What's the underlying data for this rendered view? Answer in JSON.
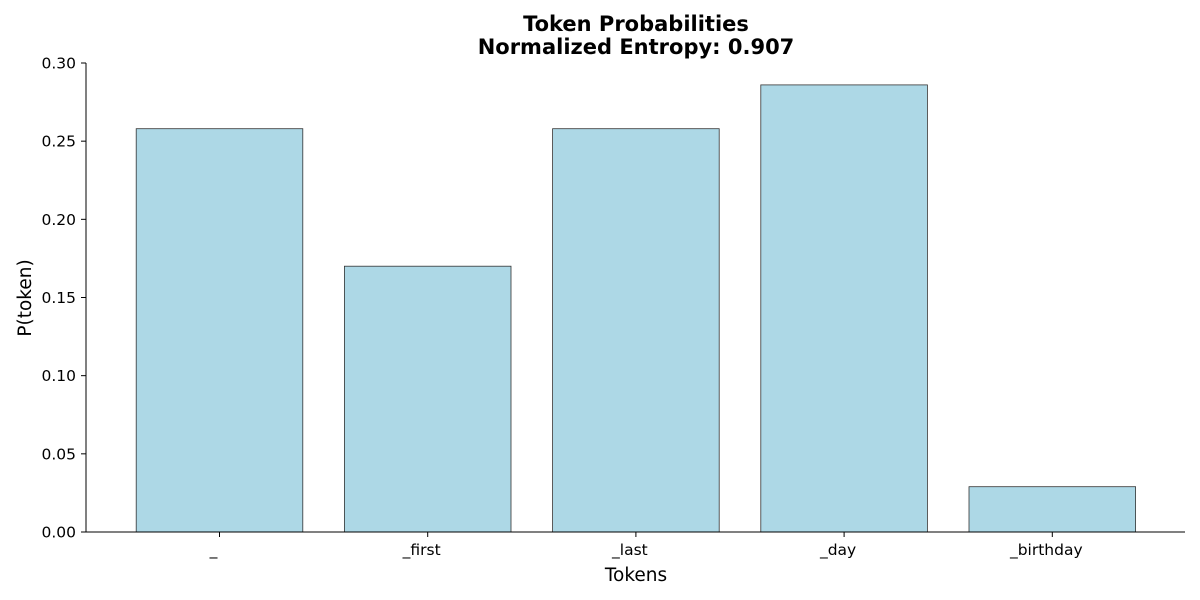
{
  "chart_data": {
    "type": "bar",
    "title": "Token Probabilities",
    "subtitle": "Normalized Entropy: 0.907",
    "xlabel": "Tokens",
    "ylabel": "P(token)",
    "categories": [
      "_",
      "_first",
      "_last",
      "_day",
      "_birthday"
    ],
    "values": [
      0.258,
      0.17,
      0.258,
      0.286,
      0.029
    ],
    "ylim": [
      0,
      0.3
    ],
    "yticks": [
      "0.00",
      "0.05",
      "0.10",
      "0.15",
      "0.20",
      "0.25",
      "0.30"
    ],
    "grid": false,
    "bar_color": "#add8e6",
    "edge_color": "#333333"
  }
}
